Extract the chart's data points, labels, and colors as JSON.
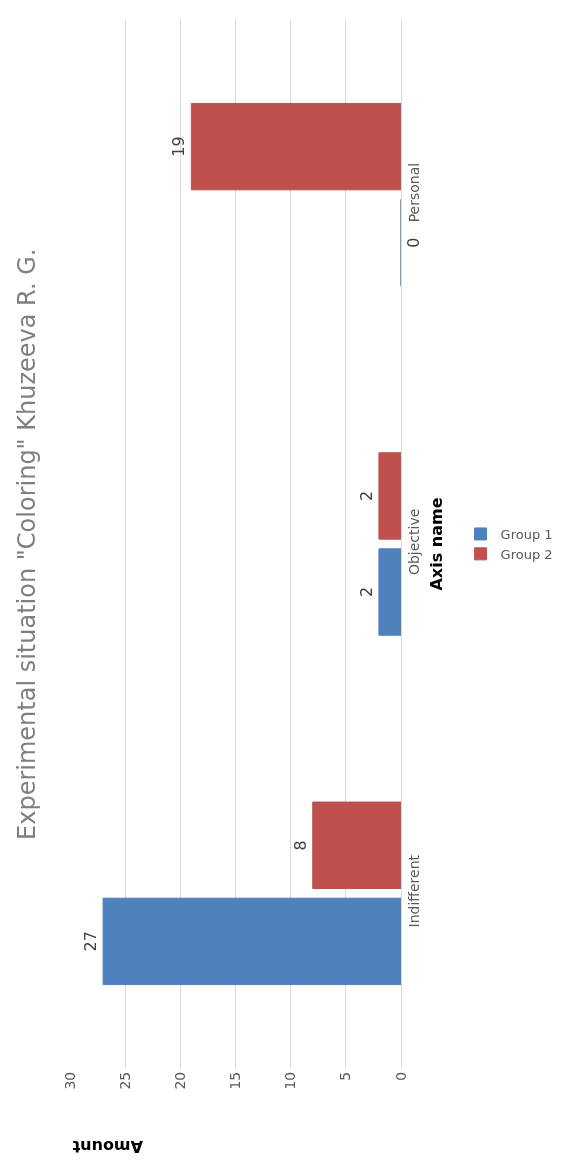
{
  "chart_data": {
    "type": "bar",
    "orientation": "horizontal",
    "title": "Experimental situation \"Coloring\" Khuzeeva R. G.",
    "xlabel": "Amount",
    "ylabel": "Axis name",
    "categories": [
      "Personal",
      "Objective",
      "Indifferent"
    ],
    "series": [
      {
        "name": "Group 1",
        "color": "#4f81bd",
        "values": [
          0,
          2,
          27
        ]
      },
      {
        "name": "Group 2",
        "color": "#c0504d",
        "values": [
          19,
          2,
          8
        ]
      }
    ],
    "xlim": [
      30,
      0
    ],
    "xticks": [
      0,
      5,
      10,
      15,
      20,
      25,
      30
    ],
    "grid": "x",
    "data_labels": true,
    "legend": "right"
  }
}
